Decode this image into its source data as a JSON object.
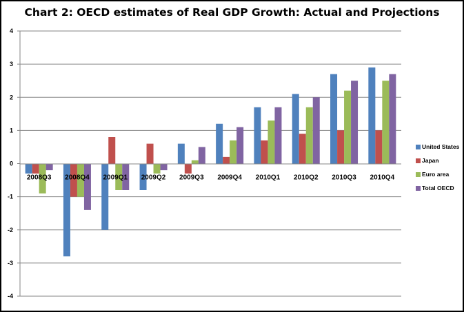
{
  "chart_data": {
    "type": "bar",
    "title": "Chart 2: OECD estimates of Real GDP Growth: Actual and Projections",
    "xlabel": "",
    "ylabel": "",
    "ylim": [
      -4,
      4
    ],
    "yticks": [
      4,
      3,
      2,
      1,
      0,
      -1,
      -2,
      -3,
      -4
    ],
    "grid": true,
    "legend_position": "right",
    "categories": [
      "2008Q3",
      "2008Q4",
      "2009Q1",
      "2009Q2",
      "2009Q3",
      "2009Q4",
      "2010Q1",
      "2010Q2",
      "2010Q3",
      "2010Q4"
    ],
    "series": [
      {
        "name": "United States",
        "color": "#4F81BD",
        "values": [
          -0.3,
          -2.8,
          -2.0,
          -0.8,
          0.6,
          1.2,
          1.7,
          2.1,
          2.7,
          2.9
        ]
      },
      {
        "name": "Japan",
        "color": "#C0504D",
        "values": [
          -0.3,
          -1.0,
          0.8,
          0.6,
          -0.3,
          0.2,
          0.7,
          0.9,
          1.0,
          1.0
        ]
      },
      {
        "name": "Euro area",
        "color": "#9BBB59",
        "values": [
          -0.9,
          -1.0,
          -0.8,
          -0.3,
          0.1,
          0.7,
          1.3,
          1.7,
          2.2,
          2.5
        ]
      },
      {
        "name": "Total OECD",
        "color": "#8064A2",
        "values": [
          -0.2,
          -1.4,
          -0.8,
          -0.2,
          0.5,
          1.1,
          1.7,
          2.0,
          2.5,
          2.7
        ]
      }
    ]
  }
}
